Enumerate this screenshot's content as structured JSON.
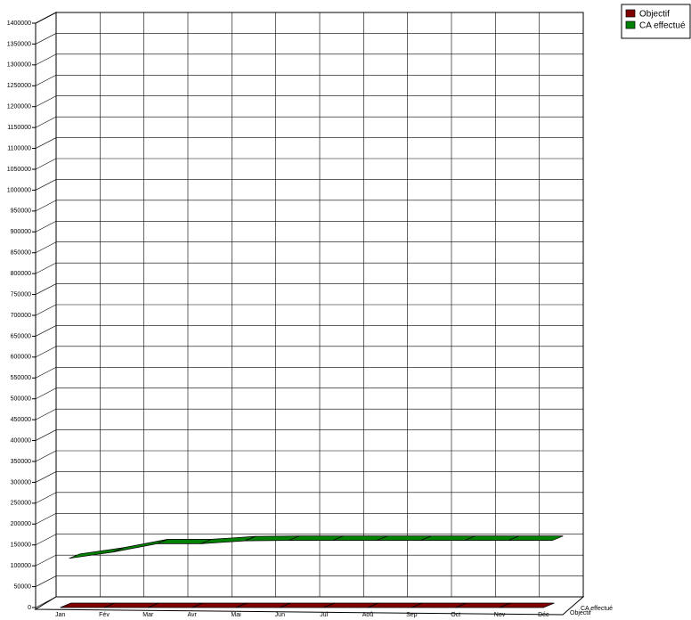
{
  "chart_data": {
    "type": "line3d",
    "categories": [
      "Jan",
      "Fév",
      "Mar",
      "Avr",
      "Mai",
      "Jun",
      "Jul",
      "Aoû",
      "Sep",
      "Oct",
      "Nov",
      "Déc"
    ],
    "series": [
      {
        "name": "Objectif",
        "color": "#800000",
        "values": [
          0,
          0,
          0,
          0,
          0,
          0,
          0,
          0,
          0,
          0,
          0,
          0
        ]
      },
      {
        "name": "CA effectué",
        "color": "#008000",
        "values": [
          105000,
          120000,
          140000,
          140000,
          147000,
          148000,
          148000,
          148000,
          148000,
          148000,
          148000,
          148000
        ]
      }
    ],
    "ylim": [
      0,
      1400000
    ],
    "yticks": [
      0,
      50000,
      100000,
      150000,
      200000,
      250000,
      300000,
      350000,
      400000,
      450000,
      500000,
      550000,
      600000,
      650000,
      700000,
      750000,
      800000,
      850000,
      900000,
      950000,
      1000000,
      1050000,
      1100000,
      1150000,
      1200000,
      1250000,
      1300000,
      1350000,
      1400000
    ],
    "grid": true
  }
}
